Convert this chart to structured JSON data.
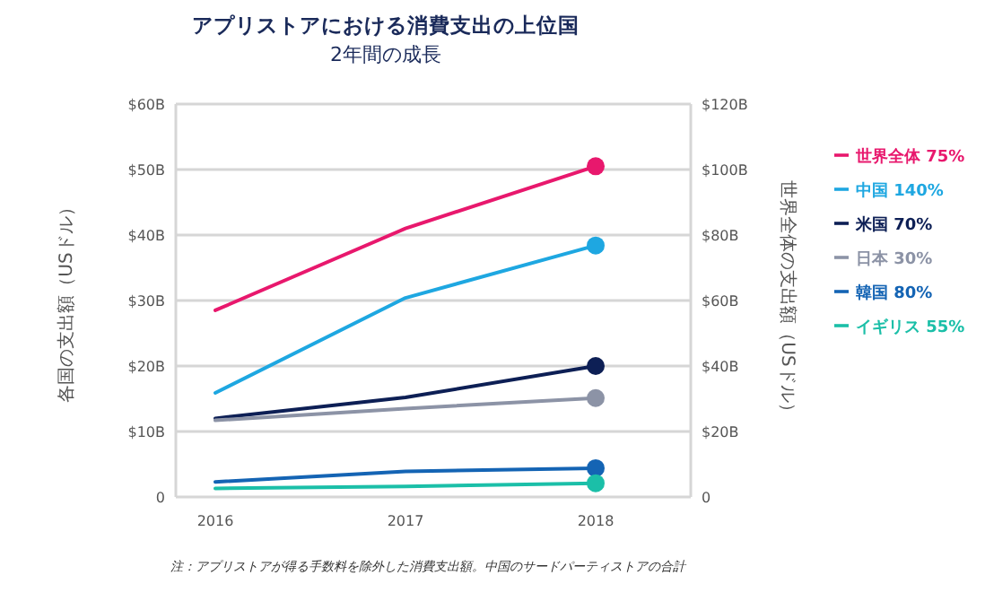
{
  "chart_data": {
    "type": "line",
    "title": "アプリストアにおける消費支出の上位国",
    "subtitle": "2年間の成長",
    "ylabel": "各国の支出額（USドル）",
    "y2label": "世界全体の支出額（USドル）",
    "categories": [
      "2016",
      "2017",
      "2018"
    ],
    "ylim": [
      0,
      60
    ],
    "yticks": [
      {
        "value": 0,
        "label": "0"
      },
      {
        "value": 10,
        "label": "$10B"
      },
      {
        "value": 20,
        "label": "$20B"
      },
      {
        "value": 30,
        "label": "$30B"
      },
      {
        "value": 40,
        "label": "$40B"
      },
      {
        "value": 50,
        "label": "$50B"
      },
      {
        "value": 60,
        "label": "$60B"
      }
    ],
    "y2lim": [
      0,
      120
    ],
    "y2ticks": [
      {
        "value": 0,
        "label": "0"
      },
      {
        "value": 20,
        "label": "$20B"
      },
      {
        "value": 40,
        "label": "$40B"
      },
      {
        "value": 60,
        "label": "$60B"
      },
      {
        "value": 80,
        "label": "$80B"
      },
      {
        "value": 100,
        "label": "$100B"
      },
      {
        "value": 120,
        "label": "$120B"
      }
    ],
    "grid": "y",
    "legend": "right",
    "series": [
      {
        "name": "世界全体 75%",
        "color": "#e8186d",
        "axis": "y2",
        "values": [
          57,
          82,
          101
        ]
      },
      {
        "name": "中国 140%",
        "color": "#1ea7e1",
        "values": [
          15.9,
          30.4,
          38.4
        ]
      },
      {
        "name": "米国 70%",
        "color": "#0d1f55",
        "values": [
          12,
          15.2,
          20
        ]
      },
      {
        "name": "日本 30%",
        "color": "#8c93a6",
        "values": [
          11.7,
          13.5,
          15.1
        ]
      },
      {
        "name": "韓国 80%",
        "color": "#1464b4",
        "values": [
          2.3,
          3.9,
          4.4
        ]
      },
      {
        "name": "イギリス 55%",
        "color": "#1bbfa8",
        "values": [
          1.3,
          1.6,
          2.1
        ]
      }
    ],
    "annotations": [
      "注：アプリストアが得る手数料を除外した消費支出額。中国のサードパーティストアの合計"
    ]
  }
}
